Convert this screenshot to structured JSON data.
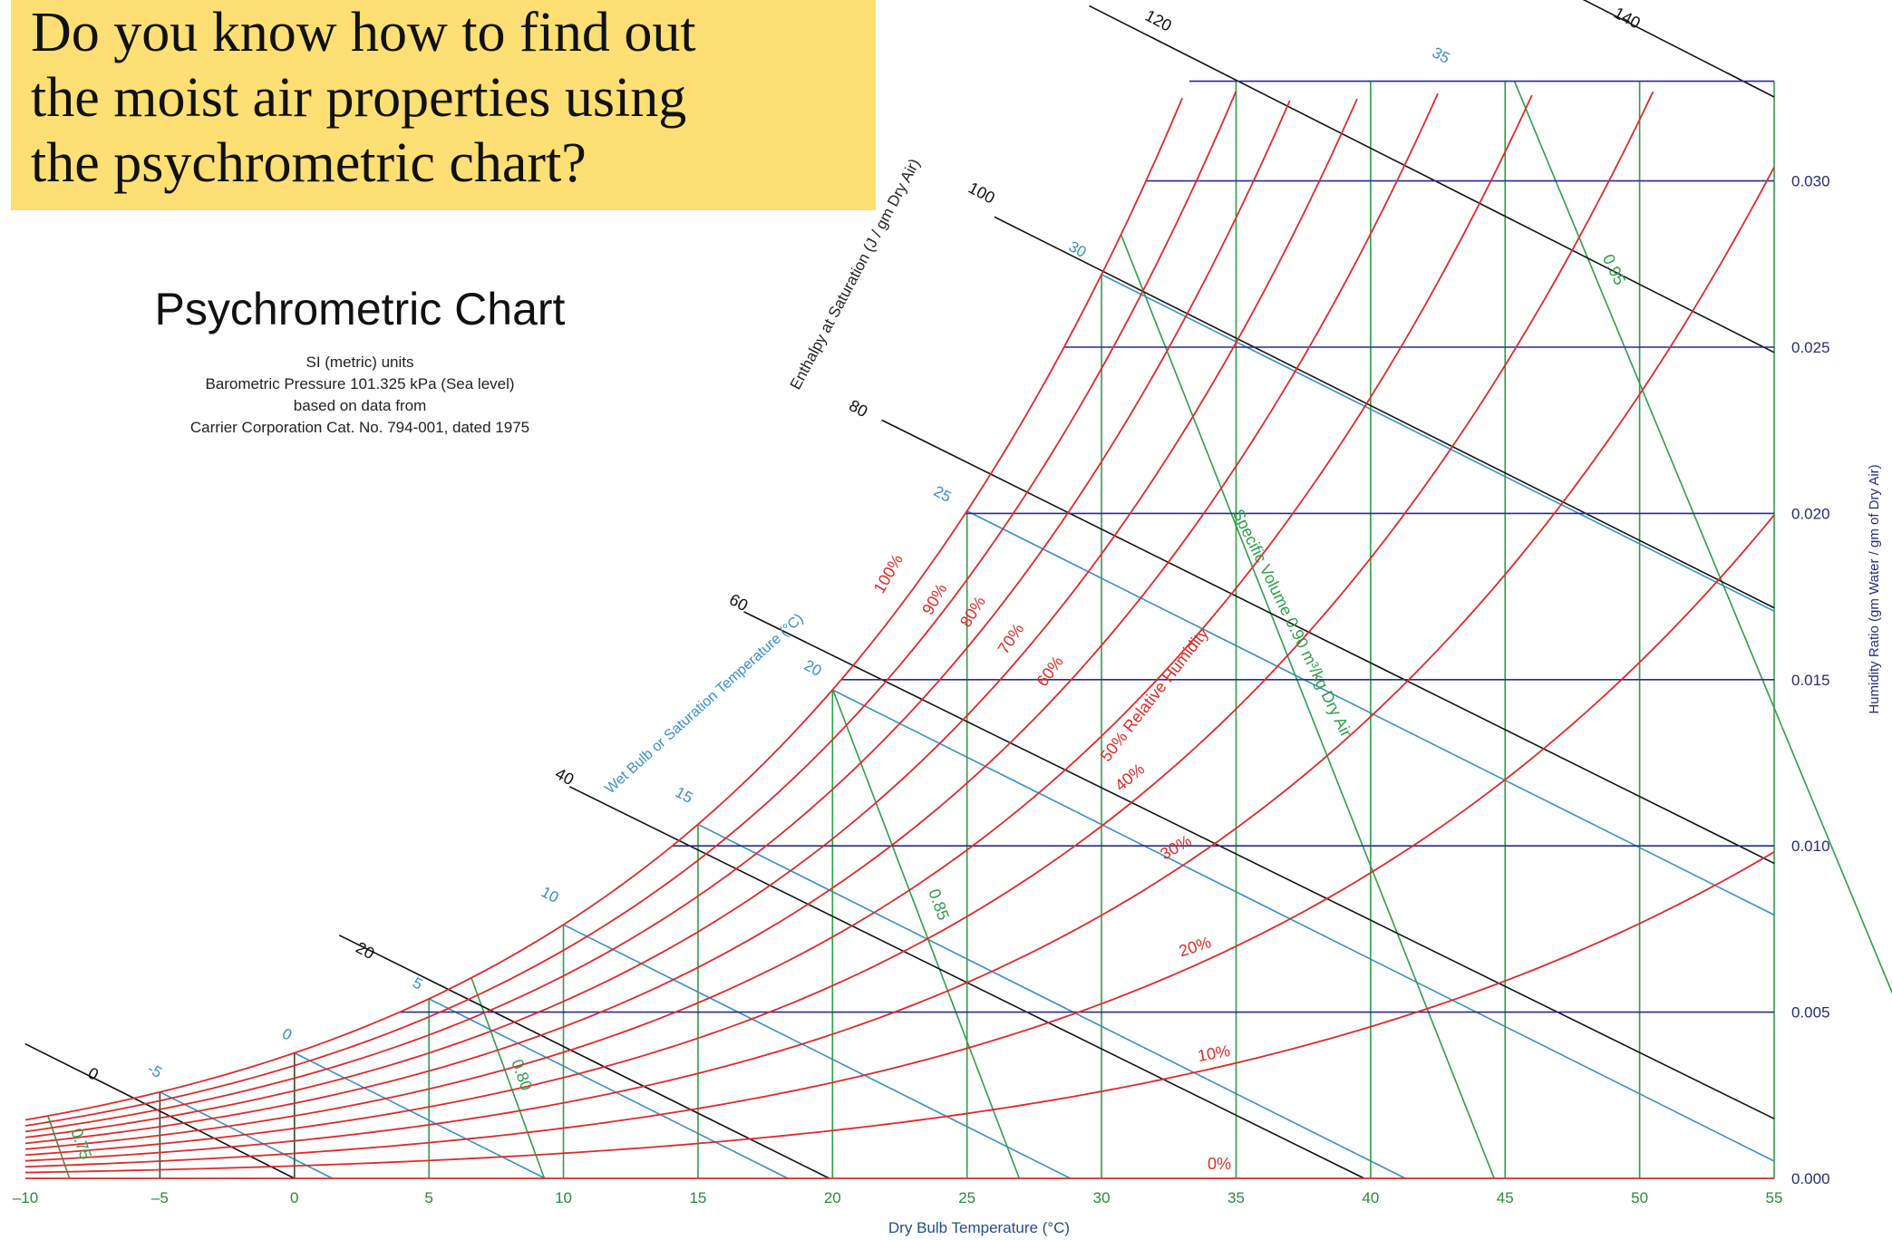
{
  "question": {
    "lines": [
      "Do you know how to find out",
      "the moist air properties using",
      "the psychrometric chart?"
    ]
  },
  "chart_data": {
    "type": "line",
    "title": "Psychrometric Chart",
    "subtitle_lines": [
      "SI (metric) units",
      "Barometric Pressure 101.325 kPa (Sea level)",
      "based on data from",
      "Carrier Corporation Cat. No. 794-001, dated 1975"
    ],
    "xlabel": "Dry Bulb Temperature (°C)",
    "ylabel": "Humidity Ratio (gm Water / gm of Dry Air)",
    "xlim": [
      -10,
      55
    ],
    "ylim": [
      0,
      0.033
    ],
    "x_ticks": [
      "–10",
      "–5",
      "0",
      "5",
      "10",
      "15",
      "20",
      "25",
      "30",
      "35",
      "40",
      "45",
      "50",
      "55"
    ],
    "y_ticks": [
      "0.000",
      "0.005",
      "0.010",
      "0.015",
      "0.020",
      "0.025",
      "0.030"
    ],
    "enthalpy_axis_label": "Enthalpy at Saturation (J / gm Dry Air)",
    "enthalpy_values": [
      "0",
      "20",
      "40",
      "60",
      "80",
      "100",
      "120",
      "140"
    ],
    "wet_bulb_label": "Wet Bulb or Saturation Temperature (°C)",
    "wet_bulb_values": [
      "-5",
      "0",
      "5",
      "10",
      "15",
      "20",
      "25",
      "30",
      "35"
    ],
    "relative_humidity_labels": [
      "100%",
      "90%",
      "80%",
      "70%",
      "60%",
      "50% Relative Humidity",
      "40%",
      "30%",
      "20%",
      "10%",
      "0%"
    ],
    "specific_volume_label": "Specific Volume 0.90 m³/kg Dry Air",
    "specific_volume_values": [
      "0.75",
      "0.80",
      "0.85",
      "0.95"
    ],
    "series": [
      {
        "name": "100%",
        "x": [
          -10,
          -5,
          0,
          5,
          10,
          15,
          20,
          25,
          30,
          32.6
        ],
        "y": [
          0.00161,
          0.00249,
          0.00379,
          0.0054,
          0.00763,
          0.01064,
          0.01472,
          0.02017,
          0.02738,
          0.033
        ]
      },
      {
        "name": "90%",
        "x": [
          -10,
          -5,
          0,
          5,
          10,
          15,
          20,
          25,
          30,
          34.2
        ],
        "y": [
          0.00145,
          0.00224,
          0.00341,
          0.00486,
          0.00686,
          0.00957,
          0.01322,
          0.01809,
          0.02453,
          0.033
        ]
      },
      {
        "name": "80%",
        "x": [
          -10,
          -5,
          0,
          5,
          10,
          15,
          20,
          25,
          30,
          35,
          35.8
        ],
        "y": [
          0.00129,
          0.00199,
          0.00303,
          0.00432,
          0.0061,
          0.0085,
          0.01173,
          0.01604,
          0.02171,
          0.02911,
          0.033
        ]
      },
      {
        "name": "70%",
        "x": [
          -10,
          -5,
          0,
          5,
          10,
          15,
          20,
          25,
          30,
          35,
          37.6
        ],
        "y": [
          0.00113,
          0.00174,
          0.00265,
          0.00377,
          0.00533,
          0.00743,
          0.01025,
          0.014,
          0.01893,
          0.02538,
          0.033
        ]
      },
      {
        "name": "60%",
        "x": [
          -10,
          -5,
          0,
          5,
          10,
          15,
          20,
          25,
          30,
          35,
          39.8
        ],
        "y": [
          0.00097,
          0.00149,
          0.00227,
          0.00323,
          0.00457,
          0.00636,
          0.00877,
          0.01197,
          0.01618,
          0.02165,
          0.033
        ]
      },
      {
        "name": "50%",
        "x": [
          -10,
          -5,
          0,
          5,
          10,
          15,
          20,
          25,
          30,
          35,
          40,
          42.4
        ],
        "y": [
          0.0008,
          0.00124,
          0.00189,
          0.00269,
          0.0038,
          0.0053,
          0.0073,
          0.00995,
          0.01344,
          0.01797,
          0.02378,
          0.033
        ]
      },
      {
        "name": "40%",
        "x": [
          -10,
          -5,
          0,
          5,
          10,
          15,
          20,
          25,
          30,
          35,
          40,
          45,
          46
        ],
        "y": [
          0.00064,
          0.00099,
          0.00151,
          0.00215,
          0.00304,
          0.00423,
          0.00583,
          0.00794,
          0.01072,
          0.01431,
          0.01892,
          0.02479,
          0.033
        ]
      },
      {
        "name": "30%",
        "x": [
          -10,
          -5,
          0,
          5,
          10,
          15,
          20,
          25,
          30,
          35,
          40,
          45,
          50,
          51
        ],
        "y": [
          0.00048,
          0.00074,
          0.00113,
          0.00161,
          0.00227,
          0.00317,
          0.00436,
          0.00594,
          0.00802,
          0.01069,
          0.01411,
          0.01844,
          0.0239,
          0.033
        ]
      },
      {
        "name": "20%",
        "x": [
          -10,
          -5,
          0,
          5,
          10,
          15,
          20,
          25,
          30,
          35,
          40,
          45,
          50,
          55
        ],
        "y": [
          0.00032,
          0.00049,
          0.00075,
          0.00107,
          0.00151,
          0.00211,
          0.0029,
          0.00395,
          0.00532,
          0.00709,
          0.00935,
          0.01219,
          0.01576,
          0.02022
        ]
      },
      {
        "name": "10%",
        "x": [
          -10,
          -5,
          0,
          5,
          10,
          15,
          20,
          25,
          30,
          35,
          40,
          45,
          50,
          55
        ],
        "y": [
          0.00016,
          0.00025,
          0.00038,
          0.00054,
          0.00075,
          0.00105,
          0.00144,
          0.00196,
          0.00264,
          0.00352,
          0.00463,
          0.00604,
          0.00779,
          0.00997
        ]
      },
      {
        "name": "0%",
        "x": [
          -10,
          55
        ],
        "y": [
          0,
          0
        ]
      }
    ]
  }
}
